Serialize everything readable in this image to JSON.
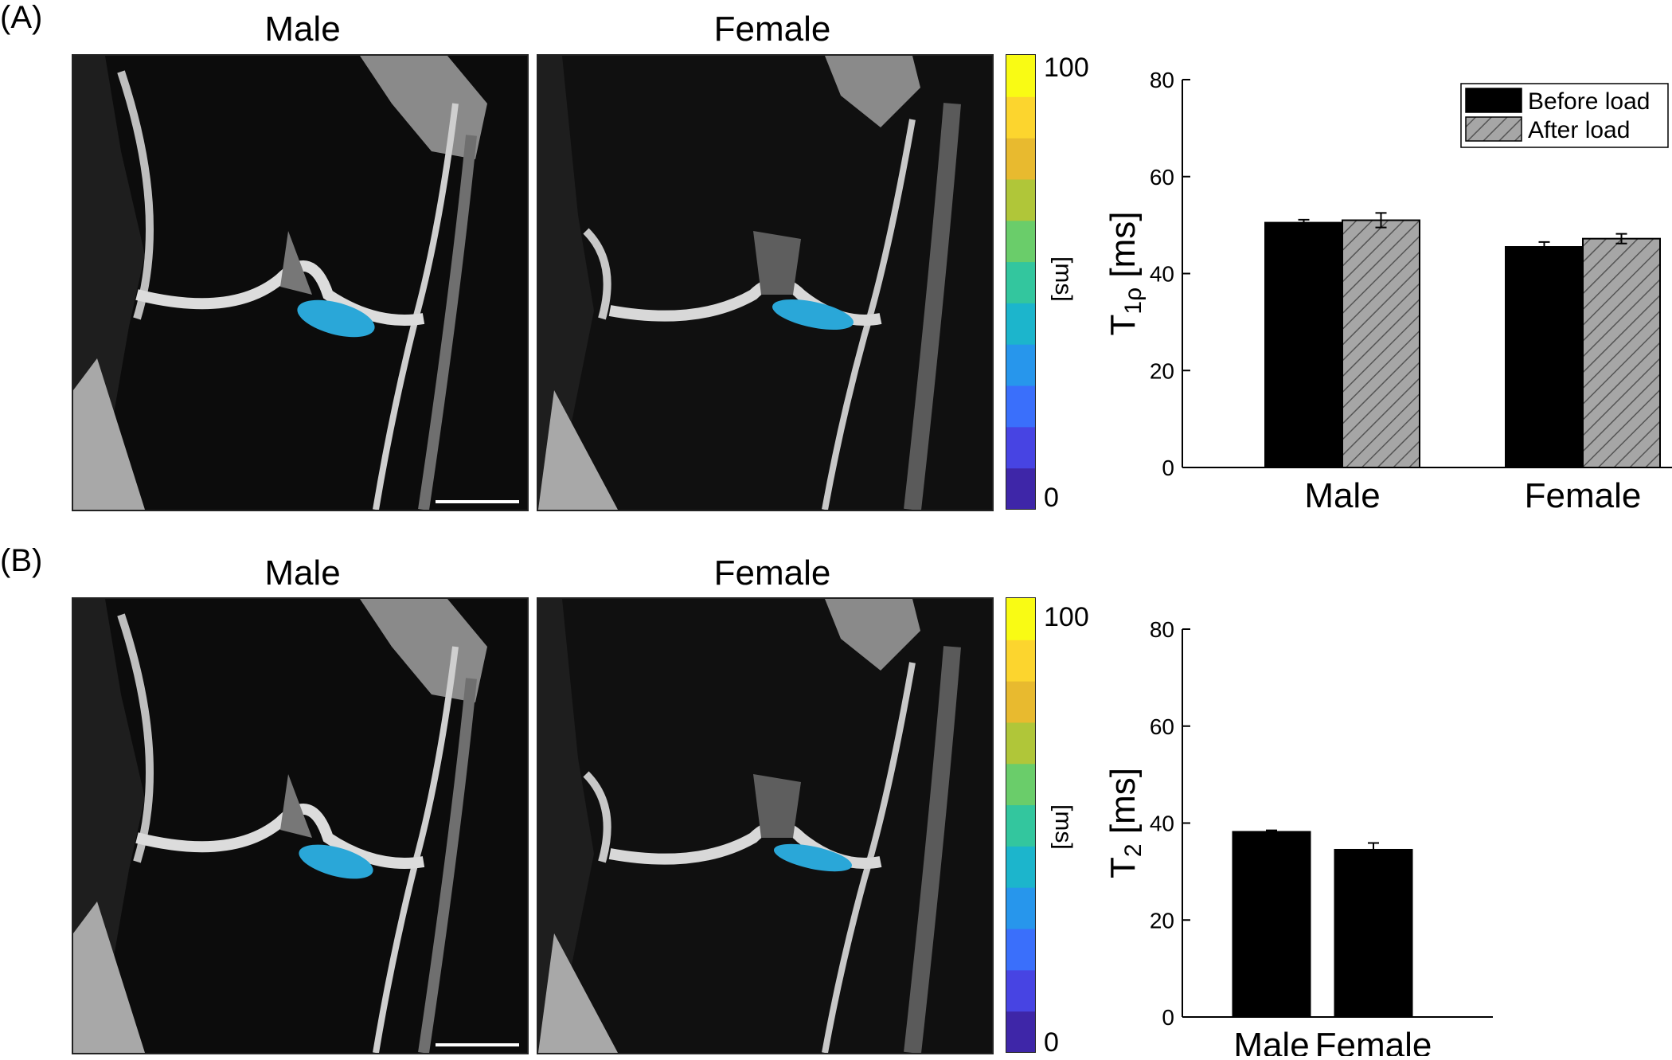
{
  "panels": [
    {
      "label": "(A)",
      "titles": [
        "Male",
        "Female"
      ],
      "colorbar": {
        "min": "0",
        "max": "100",
        "unit": "[ms]"
      }
    },
    {
      "label": "(B)",
      "titles": [
        "Male",
        "Female"
      ],
      "colorbar": {
        "min": "0",
        "max": "100",
        "unit": "[ms]"
      }
    }
  ],
  "colormap": [
    "#3e26a8",
    "#4744e3",
    "#3a6ffb",
    "#2796ec",
    "#1cb5cc",
    "#33c69e",
    "#6acd6a",
    "#b0c639",
    "#e8ba2f",
    "#fcd52e",
    "#f9fb14"
  ],
  "chart_data": [
    {
      "type": "bar",
      "ylabel_main": "T",
      "ylabel_sub": "1ρ",
      "ylabel_unit": " [ms]",
      "ylim": [
        0,
        80
      ],
      "yticks": [
        0,
        20,
        40,
        60,
        80
      ],
      "categories": [
        "Male",
        "Female"
      ],
      "legend_position": "top-right",
      "series": [
        {
          "name": "Before load",
          "values": [
            50.5,
            45.5
          ],
          "errors": [
            0.6,
            1.0
          ],
          "color": "#000000",
          "pattern": "solid"
        },
        {
          "name": "After load",
          "values": [
            51.0,
            47.2
          ],
          "errors": [
            1.5,
            1.0
          ],
          "color": "#a6a6a6",
          "pattern": "hatched"
        }
      ]
    },
    {
      "type": "bar",
      "ylabel_main": "T",
      "ylabel_sub": "2",
      "ylabel_unit": " [ms]",
      "ylim": [
        0,
        80
      ],
      "yticks": [
        0,
        20,
        40,
        60,
        80
      ],
      "categories": [
        "Male",
        "Female"
      ],
      "series": [
        {
          "values": [
            38.2,
            34.5
          ],
          "errors": [
            0.3,
            1.4
          ],
          "color": "#000000",
          "pattern": "solid"
        }
      ]
    }
  ]
}
